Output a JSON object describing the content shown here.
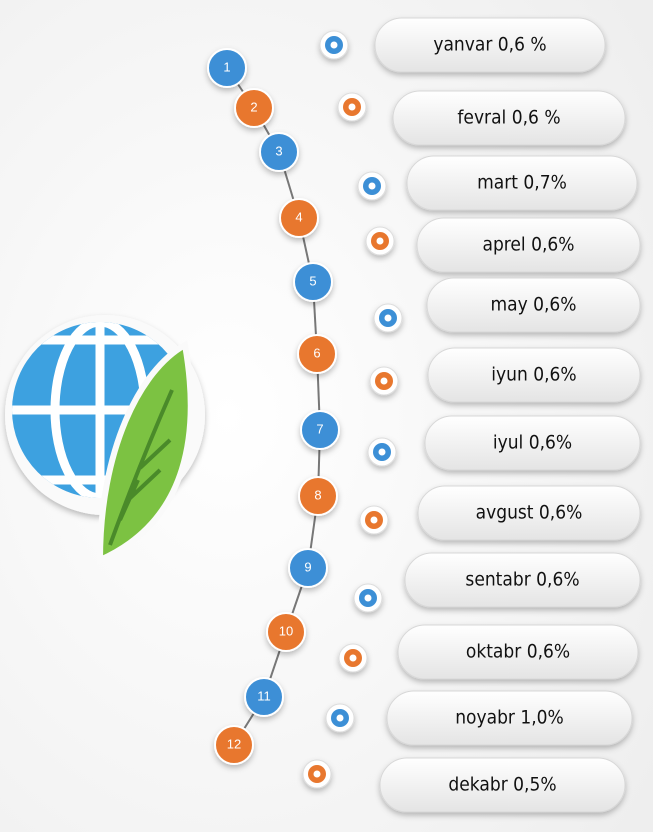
{
  "items": [
    {
      "number": "1",
      "label": "yanvar 0,6 %"
    },
    {
      "number": "2",
      "label": "fevral 0,6 %"
    },
    {
      "number": "3",
      "label": "mart 0,7%"
    },
    {
      "number": "4",
      "label": "aprel 0,6%"
    },
    {
      "number": "5",
      "label": "may 0,6%"
    },
    {
      "number": "6",
      "label": "iyun 0,6%"
    },
    {
      "number": "7",
      "label": "iyul 0,6%"
    },
    {
      "number": "8",
      "label": "avgust 0,6%"
    },
    {
      "number": "9",
      "label": "sentabr 0,6%"
    },
    {
      "number": "10",
      "label": "oktabr 0,6%"
    },
    {
      "number": "11",
      "label": "noyabr 1,0%"
    },
    {
      "number": "12",
      "label": "dekabr 0,5%"
    }
  ]
}
